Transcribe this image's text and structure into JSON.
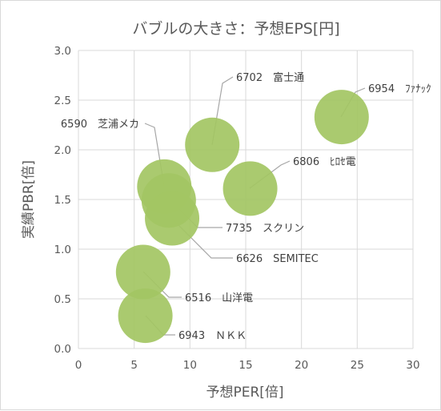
{
  "chart_data": {
    "type": "bubble",
    "title": "バブルの大きさ：予想EPS[円]",
    "xlabel": "予想PER[倍]",
    "ylabel": "実績PBR[倍]",
    "xlim": [
      0,
      30
    ],
    "ylim": [
      0,
      3
    ],
    "x_ticks": [
      "0",
      "5",
      "10",
      "15",
      "20",
      "25",
      "30"
    ],
    "y_ticks": [
      "0.0",
      "0.5",
      "1.0",
      "1.5",
      "2.0",
      "2.5",
      "3.0"
    ],
    "grid": true,
    "legend": "none",
    "colors": {
      "bubble": "#a3c563",
      "grid": "#d9d9d9",
      "leader": "#a6a6a6"
    },
    "points": [
      {
        "label": "6702　富士通",
        "x": 12.0,
        "y": 2.05
      },
      {
        "label": "6954　ﾌｧﾅｯｸ",
        "x": 23.6,
        "y": 2.33
      },
      {
        "label": "6590　芝浦メカ",
        "x": 7.7,
        "y": 1.63
      },
      {
        "label": "6806　ﾋﾛｾ電",
        "x": 15.4,
        "y": 1.61
      },
      {
        "label": "7735　スクリン",
        "x": 8.1,
        "y": 1.49
      },
      {
        "label": "6626　SEMITEC",
        "x": 8.4,
        "y": 1.31
      },
      {
        "label": "6516　山洋電",
        "x": 5.8,
        "y": 0.77
      },
      {
        "label": "6943　ＮＫＫ",
        "x": 6.0,
        "y": 0.33
      }
    ]
  }
}
